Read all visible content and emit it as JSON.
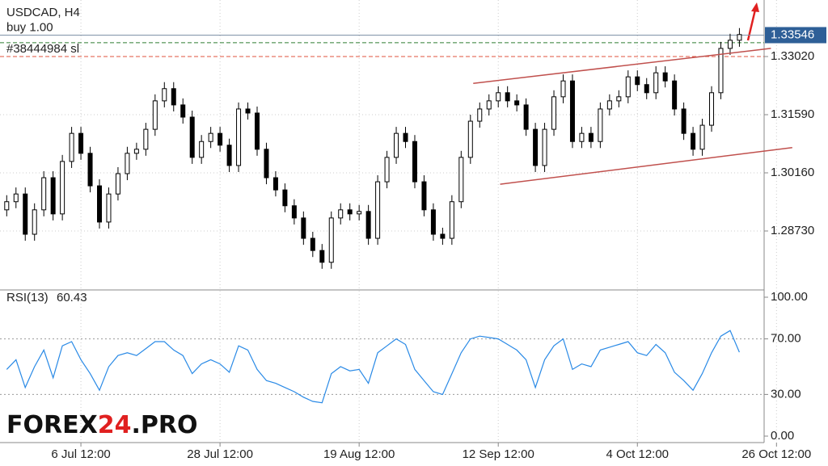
{
  "chart_data": [
    {
      "type": "candlestick",
      "title": "USDCAD, H4",
      "categories": [
        null,
        null,
        null,
        null,
        null,
        null,
        null,
        null,
        "6 Jul 12:00",
        null,
        null,
        null,
        null,
        null,
        null,
        null,
        null,
        null,
        null,
        null,
        null,
        null,
        null,
        "28 Jul 12:00",
        null,
        null,
        null,
        null,
        null,
        null,
        null,
        null,
        null,
        null,
        null,
        null,
        null,
        null,
        "19 Aug 12:00",
        null,
        null,
        null,
        null,
        null,
        null,
        null,
        null,
        null,
        null,
        null,
        null,
        null,
        null,
        "12 Sep 12:00",
        null,
        null,
        null,
        null,
        null,
        null,
        null,
        null,
        null,
        null,
        null,
        null,
        null,
        null,
        "4 Oct 12:00",
        null,
        null,
        null,
        null,
        null,
        null,
        null,
        null,
        null,
        null,
        null,
        null,
        null,
        null,
        "26 Oct 12:00"
      ],
      "open": [
        1.2925,
        1.2945,
        1.2964,
        1.2865,
        1.2925,
        1.3004,
        1.2915,
        1.3044,
        1.3113,
        1.3064,
        1.2984,
        1.2895,
        1.2964,
        1.3014,
        1.3064,
        1.3074,
        1.3123,
        1.3193,
        1.3223,
        1.3183,
        1.3153,
        1.3054,
        1.3093,
        1.3113,
        1.3084,
        1.3034,
        1.3173,
        1.3163,
        1.3074,
        1.3004,
        1.2974,
        1.2935,
        1.2905,
        1.2855,
        1.2825,
        1.2796,
        1.2905,
        1.2925,
        1.2915,
        1.2921,
        1.2855,
        1.2994,
        1.3054,
        1.3113,
        1.3093,
        1.2994,
        1.2925,
        1.2865,
        1.2855,
        1.2945,
        1.3054,
        1.3143,
        1.3173,
        1.3193,
        1.3213,
        1.3193,
        1.3183,
        1.3123,
        1.3034,
        1.3123,
        1.3203,
        1.3242,
        1.3093,
        1.3113,
        1.3093,
        1.3173,
        1.3193,
        1.3203,
        1.3252,
        1.3233,
        1.3213,
        1.3262,
        1.3242,
        1.3173,
        1.3113,
        1.3074,
        1.3133,
        1.3213,
        1.3322,
        1.3342,
        null,
        null,
        null,
        null
      ],
      "high": [
        1.2961,
        1.298,
        1.298,
        1.2941,
        1.302,
        1.302,
        1.306,
        1.3129,
        1.3129,
        1.308,
        1.3,
        1.298,
        1.303,
        1.308,
        1.309,
        1.3139,
        1.3209,
        1.3239,
        1.3239,
        1.3199,
        1.3169,
        1.3109,
        1.3129,
        1.3129,
        1.31,
        1.3189,
        1.3189,
        1.3179,
        1.309,
        1.302,
        1.299,
        1.2951,
        1.2921,
        1.2871,
        1.2841,
        1.2921,
        1.2941,
        1.2941,
        1.2937,
        1.2937,
        1.301,
        1.307,
        1.3129,
        1.3129,
        1.3109,
        1.301,
        1.2941,
        1.2881,
        1.2961,
        1.307,
        1.3159,
        1.3189,
        1.3209,
        1.3229,
        1.3229,
        1.3209,
        1.3199,
        1.3139,
        1.3139,
        1.3219,
        1.3258,
        1.3258,
        1.3129,
        1.3129,
        1.3189,
        1.3209,
        1.3219,
        1.3268,
        1.3268,
        1.3249,
        1.3278,
        1.3278,
        1.3258,
        1.3189,
        1.3129,
        1.3149,
        1.3229,
        1.3338,
        1.3358,
        1.3372,
        null,
        null,
        null,
        null
      ],
      "low": [
        1.2909,
        1.2929,
        1.2849,
        1.2849,
        1.2909,
        1.2899,
        1.2899,
        1.3028,
        1.3048,
        1.2968,
        1.2879,
        1.2879,
        1.2948,
        1.2998,
        1.3048,
        1.3058,
        1.3107,
        1.3177,
        1.3167,
        1.3137,
        1.3038,
        1.3038,
        1.3077,
        1.3068,
        1.3018,
        1.3018,
        1.3147,
        1.3058,
        1.2988,
        1.2958,
        1.2919,
        1.2889,
        1.2839,
        1.2809,
        1.278,
        1.278,
        1.2889,
        1.2899,
        1.2899,
        1.2839,
        1.2839,
        1.2978,
        1.3038,
        1.3077,
        1.2978,
        1.2909,
        1.2849,
        1.2839,
        1.2839,
        1.2929,
        1.3038,
        1.3127,
        1.3157,
        1.3177,
        1.3177,
        1.3167,
        1.3107,
        1.3018,
        1.3018,
        1.3107,
        1.3187,
        1.3077,
        1.3077,
        1.3077,
        1.3077,
        1.3157,
        1.3177,
        1.3187,
        1.3217,
        1.3197,
        1.3197,
        1.3226,
        1.3157,
        1.3097,
        1.3058,
        1.3058,
        1.3117,
        1.3197,
        1.3306,
        1.3326,
        null,
        null,
        null,
        null
      ],
      "close": [
        1.2945,
        1.2964,
        1.2865,
        1.2925,
        1.3004,
        1.2915,
        1.3044,
        1.3113,
        1.3064,
        1.2984,
        1.2895,
        1.2964,
        1.3014,
        1.3064,
        1.3074,
        1.3123,
        1.3193,
        1.3223,
        1.3183,
        1.3153,
        1.3054,
        1.3093,
        1.3113,
        1.3084,
        1.3034,
        1.3173,
        1.3163,
        1.3074,
        1.3004,
        1.2974,
        1.2935,
        1.2905,
        1.2855,
        1.2825,
        1.2796,
        1.2905,
        1.2925,
        1.2915,
        1.2921,
        1.2855,
        1.2994,
        1.3054,
        1.3113,
        1.3093,
        1.2994,
        1.2925,
        1.2865,
        1.2855,
        1.2945,
        1.3054,
        1.3143,
        1.3173,
        1.3193,
        1.3213,
        1.3193,
        1.3183,
        1.3123,
        1.3034,
        1.3123,
        1.3203,
        1.3242,
        1.3093,
        1.3113,
        1.3093,
        1.3173,
        1.3193,
        1.3203,
        1.3252,
        1.3233,
        1.3213,
        1.3262,
        1.3242,
        1.3173,
        1.3113,
        1.3074,
        1.3133,
        1.3213,
        1.3322,
        1.3342,
        1.3356,
        null,
        null,
        null,
        null
      ],
      "ylim": [
        1.273,
        1.3441
      ],
      "yticks": [
        {
          "value": 1.3302,
          "label": "1.33020"
        },
        {
          "value": 1.3159,
          "label": "1.31590"
        },
        {
          "value": 1.3016,
          "label": "1.30160"
        },
        {
          "value": 1.2873,
          "label": "1.28730"
        }
      ],
      "current_price": {
        "value": 1.33546,
        "label": "1.33546"
      },
      "orders": [
        {
          "label": "buy 1.00",
          "price": 1.33546,
          "color": "#7f93a8",
          "dash": false
        },
        {
          "price": 1.3336,
          "color": "#2f7d32",
          "dash": true
        },
        {
          "label": "#38444984 sl",
          "price": 1.3302,
          "color": "#e0533d",
          "dash": true
        }
      ],
      "trendlines": [
        {
          "x": [
            50.3,
            82.4
          ],
          "y": [
            1.3236,
            1.3322
          ],
          "color": "#c0504d"
        },
        {
          "x": [
            53.2,
            84.7
          ],
          "y": [
            1.2988,
            1.3078
          ],
          "color": "#c0504d"
        }
      ],
      "grid": true
    },
    {
      "type": "line",
      "title": "RSI(13)",
      "title_value": 60.43,
      "color": "#2a8ae6",
      "values": [
        48,
        55,
        35,
        50,
        62,
        42,
        65,
        68,
        55,
        45,
        33,
        50,
        58,
        60,
        58,
        63,
        68,
        68,
        62,
        58,
        45,
        52,
        55,
        52,
        46,
        65,
        62,
        48,
        40,
        38,
        35,
        32,
        28,
        25,
        24,
        45,
        50,
        47,
        48,
        38,
        60,
        65,
        70,
        66,
        48,
        40,
        32,
        30,
        45,
        60,
        70,
        72,
        71,
        70,
        66,
        62,
        55,
        35,
        55,
        65,
        70,
        48,
        52,
        50,
        62,
        64,
        66,
        68,
        60,
        58,
        66,
        60,
        46,
        40,
        33,
        45,
        60,
        72,
        76,
        60.43,
        null,
        null,
        null,
        null
      ],
      "ylim": [
        0,
        100
      ],
      "yticks": [
        {
          "value": 100,
          "label": "100.00"
        },
        {
          "value": 70,
          "label": "70.00"
        },
        {
          "value": 30,
          "label": "30.00"
        },
        {
          "value": 0,
          "label": "0.00"
        }
      ],
      "levels": [
        70,
        30
      ]
    }
  ],
  "watermark": {
    "parts": [
      "FOREX",
      "24",
      ".PRO"
    ]
  }
}
